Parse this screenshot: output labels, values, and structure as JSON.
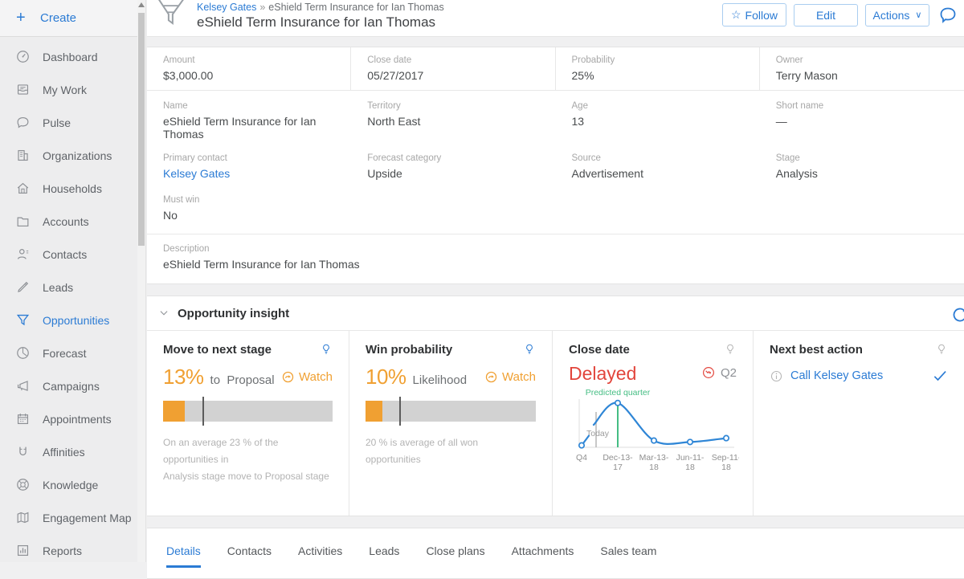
{
  "colors": {
    "accent": "#2b7bd4",
    "orange": "#f0a032",
    "red": "#e2453c",
    "green": "#44bd83",
    "chart_line": "#2f86d6"
  },
  "sidebar": {
    "create_label": "Create",
    "active_item": "Opportunities",
    "items": [
      {
        "label": "Dashboard",
        "icon": "dashboard"
      },
      {
        "label": "My Work",
        "icon": "my-work"
      },
      {
        "label": "Pulse",
        "icon": "pulse"
      },
      {
        "label": "Organizations",
        "icon": "organizations"
      },
      {
        "label": "Households",
        "icon": "households"
      },
      {
        "label": "Accounts",
        "icon": "accounts"
      },
      {
        "label": "Contacts",
        "icon": "contacts"
      },
      {
        "label": "Leads",
        "icon": "leads"
      },
      {
        "label": "Opportunities",
        "icon": "opportunities"
      },
      {
        "label": "Forecast",
        "icon": "forecast"
      },
      {
        "label": "Campaigns",
        "icon": "campaigns"
      },
      {
        "label": "Appointments",
        "icon": "appointments"
      },
      {
        "label": "Affinities",
        "icon": "affinities"
      },
      {
        "label": "Knowledge",
        "icon": "knowledge"
      },
      {
        "label": "Engagement Map",
        "icon": "engagement-map"
      },
      {
        "label": "Reports",
        "icon": "reports"
      }
    ]
  },
  "header": {
    "breadcrumb_link": "Kelsey Gates",
    "breadcrumb_separator": "»",
    "breadcrumb_current": "eShield Term Insurance for Ian Thomas",
    "title": "eShield Term Insurance for Ian Thomas",
    "follow_label": "Follow",
    "edit_label": "Edit",
    "actions_label": "Actions"
  },
  "summary": {
    "row1": [
      {
        "label": "Amount",
        "value": "$3,000.00"
      },
      {
        "label": "Close date",
        "value": "05/27/2017"
      },
      {
        "label": "Probability",
        "value": "25%"
      },
      {
        "label": "Owner",
        "value": "Terry Mason"
      }
    ],
    "row2": [
      {
        "label": "Name",
        "value": "eShield Term Insurance for Ian Thomas"
      },
      {
        "label": "Territory",
        "value": "North East"
      },
      {
        "label": "Age",
        "value": "13"
      },
      {
        "label": "Short name",
        "value": "—"
      }
    ],
    "row3": [
      {
        "label": "Primary contact",
        "value": "Kelsey Gates",
        "link": true
      },
      {
        "label": "Forecast category",
        "value": "Upside"
      },
      {
        "label": "Source",
        "value": "Advertisement"
      },
      {
        "label": "Stage",
        "value": "Analysis"
      }
    ],
    "must_win": {
      "label": "Must win",
      "value": "No"
    },
    "description": {
      "label": "Description",
      "value": "eShield Term Insurance for Ian Thomas"
    }
  },
  "insight": {
    "section_title": "Opportunity insight",
    "move_card": {
      "title": "Move to next stage",
      "percent": "13%",
      "connector": "to",
      "stage": "Proposal",
      "watch_label": "Watch",
      "fill_pct": 13,
      "marker_pct": 23,
      "note_line1": "On an average 23 % of the opportunities in",
      "note_line2": "Analysis  stage move to Proposal  stage"
    },
    "win_card": {
      "title": "Win probability",
      "percent": "10%",
      "sub": "Likelihood",
      "watch_label": "Watch",
      "fill_pct": 10,
      "marker_pct": 20,
      "note_line1": "20 % is  average of all won opportunities",
      "note_line2": ""
    },
    "close_card": {
      "title": "Close date",
      "status": "Delayed",
      "quarter": "Q2",
      "chart_data": {
        "type": "line",
        "x": [
          "Q4",
          "Dec-13-17",
          "Mar-13-18",
          "Jun-11-18",
          "Sep-11-18"
        ],
        "values": [
          4,
          92,
          14,
          11,
          19
        ],
        "annotations": {
          "today_label": "Today",
          "today_x": 0.4,
          "predicted_label": "Predicted quarter",
          "predicted_x": 1
        }
      }
    },
    "next_card": {
      "title": "Next best action",
      "action": "Call Kelsey Gates"
    }
  },
  "tabs": {
    "active": "Details",
    "items": [
      "Details",
      "Contacts",
      "Activities",
      "Leads",
      "Close plans",
      "Attachments",
      "Sales team"
    ]
  }
}
